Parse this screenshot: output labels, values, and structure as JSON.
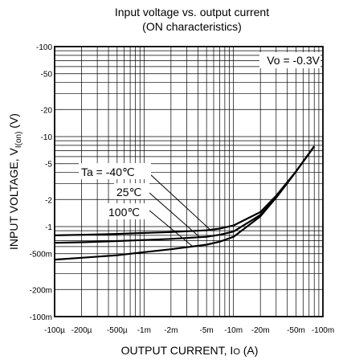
{
  "chart_data": {
    "type": "line",
    "title": "Input voltage vs. output current",
    "subtitle": "(ON characteristics)",
    "xlabel": "OUTPUT CURRENT, I",
    "xlabel_sub": "O",
    "xlabel_unit": " (A)",
    "ylabel": "INPUT VOLTAGE, V",
    "ylabel_sub": "I(on)",
    "ylabel_unit": " (V)",
    "x_scale": "log",
    "y_scale": "log",
    "x_direction": "negative",
    "y_direction": "negative",
    "xlim": [
      -0.0001,
      -0.1
    ],
    "ylim": [
      -0.1,
      -100
    ],
    "grid": true,
    "x_ticks": [
      {
        "value": -0.0001,
        "label": "-100µ"
      },
      {
        "value": -0.0002,
        "label": "-200µ"
      },
      {
        "value": -0.0005,
        "label": "-500µ"
      },
      {
        "value": -0.001,
        "label": "-1m"
      },
      {
        "value": -0.002,
        "label": "-2m"
      },
      {
        "value": -0.005,
        "label": "-5m"
      },
      {
        "value": -0.01,
        "label": "-10m"
      },
      {
        "value": -0.02,
        "label": "-20m"
      },
      {
        "value": -0.05,
        "label": "-50m"
      },
      {
        "value": -0.1,
        "label": "-100m"
      }
    ],
    "y_ticks": [
      {
        "value": -100,
        "label": "-100"
      },
      {
        "value": -50,
        "label": "-50"
      },
      {
        "value": -20,
        "label": "-20"
      },
      {
        "value": -10,
        "label": "-10"
      },
      {
        "value": -5,
        "label": "-5"
      },
      {
        "value": -2,
        "label": "-2"
      },
      {
        "value": -1,
        "label": "-1"
      },
      {
        "value": -0.5,
        "label": "-500m"
      },
      {
        "value": -0.2,
        "label": "-200m"
      },
      {
        "value": -0.1,
        "label": "-100m"
      }
    ],
    "condition_label": "Vo = -0.3V",
    "series": [
      {
        "name": "Ta = -40℃",
        "x": [
          -0.0001,
          -0.0002,
          -0.0005,
          -0.001,
          -0.002,
          -0.005,
          -0.007,
          -0.01,
          -0.02,
          -0.03,
          -0.05,
          -0.08
        ],
        "y": [
          -0.8,
          -0.81,
          -0.83,
          -0.85,
          -0.87,
          -0.91,
          -0.95,
          -1.03,
          -1.45,
          -2.2,
          -4.1,
          -7.8
        ]
      },
      {
        "name": "25℃",
        "x": [
          -0.0001,
          -0.0002,
          -0.0005,
          -0.001,
          -0.002,
          -0.005,
          -0.007,
          -0.01,
          -0.02,
          -0.03,
          -0.05,
          -0.08
        ],
        "y": [
          -0.66,
          -0.67,
          -0.69,
          -0.71,
          -0.73,
          -0.77,
          -0.81,
          -0.88,
          -1.35,
          -2.1,
          -4.1,
          -7.8
        ]
      },
      {
        "name": "100℃",
        "x": [
          -0.0001,
          -0.0002,
          -0.0005,
          -0.001,
          -0.002,
          -0.005,
          -0.007,
          -0.01,
          -0.02,
          -0.03,
          -0.05,
          -0.08
        ],
        "y": [
          -0.43,
          -0.45,
          -0.48,
          -0.52,
          -0.56,
          -0.63,
          -0.68,
          -0.77,
          -1.3,
          -2.1,
          -4.1,
          -7.8
        ]
      }
    ]
  }
}
